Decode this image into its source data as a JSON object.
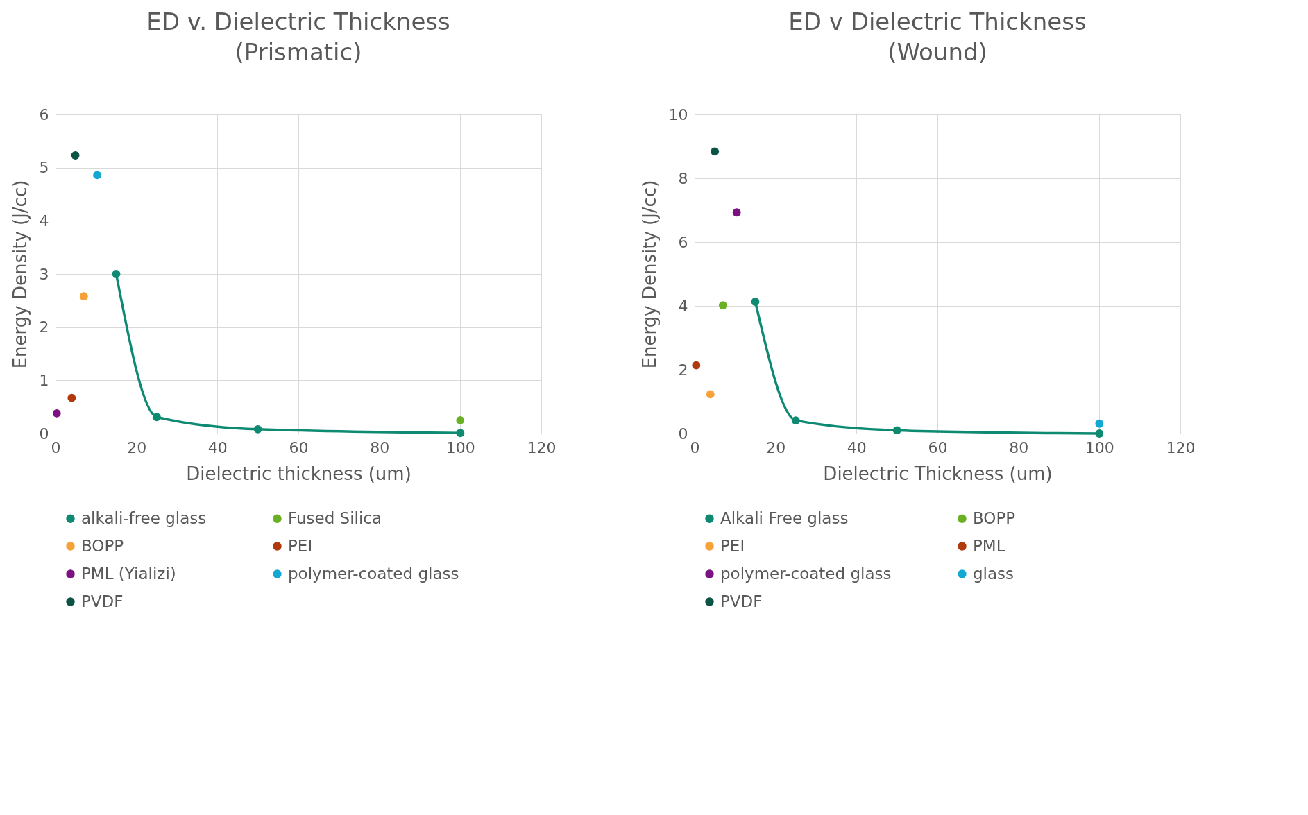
{
  "chart_data": [
    {
      "type": "scatter",
      "title": "ED v. Dielectric Thickness\n(Prismatic)",
      "xlabel": "Dielectric thickness (um)",
      "ylabel": "Energy Density (J/cc)",
      "xlim": [
        0,
        120
      ],
      "xticks": [
        0,
        20,
        40,
        60,
        80,
        100,
        120
      ],
      "ylim": [
        0,
        6
      ],
      "yticks": [
        0,
        1,
        2,
        3,
        4,
        5,
        6
      ],
      "grid": true,
      "legend": "bottom",
      "marker": "circle",
      "series": [
        {
          "name": "alkali-free glass",
          "type": "line",
          "color": "#0e8a72",
          "x": [
            15,
            25,
            50,
            100
          ],
          "values": [
            3.0,
            0.31,
            0.08,
            0.01
          ]
        },
        {
          "name": "Fused Silica",
          "color": "#6ab023",
          "x": [
            100
          ],
          "values": [
            0.25
          ]
        },
        {
          "name": "BOPP",
          "color": "#f7a139",
          "x": [
            7
          ],
          "values": [
            2.58
          ]
        },
        {
          "name": "PEI",
          "color": "#b03a0e",
          "x": [
            4
          ],
          "values": [
            0.67
          ]
        },
        {
          "name": "PML (Yializi)",
          "color": "#7b1183",
          "x": [
            0.3
          ],
          "values": [
            0.38
          ]
        },
        {
          "name": "polymer-coated glass",
          "color": "#12a8d2",
          "x": [
            10.3
          ],
          "values": [
            4.86
          ]
        },
        {
          "name": "PVDF",
          "color": "#0b5345",
          "x": [
            4.9
          ],
          "values": [
            5.23
          ]
        }
      ]
    },
    {
      "type": "scatter",
      "title": "ED v Dielectric Thickness\n(Wound)",
      "xlabel": "Dielectric Thickness (um)",
      "ylabel": "Energy Density (J/cc)",
      "xlim": [
        0,
        120
      ],
      "xticks": [
        0,
        20,
        40,
        60,
        80,
        100,
        120
      ],
      "ylim": [
        0,
        10
      ],
      "yticks": [
        0,
        2,
        4,
        6,
        8,
        10
      ],
      "grid": true,
      "legend": "bottom",
      "marker": "circle",
      "series": [
        {
          "name": "Alkali Free glass",
          "type": "line",
          "color": "#0e8a72",
          "x": [
            15,
            25,
            50,
            100
          ],
          "values": [
            4.13,
            0.41,
            0.1,
            0.0
          ]
        },
        {
          "name": "BOPP",
          "color": "#6ab023",
          "x": [
            7
          ],
          "values": [
            4.02
          ]
        },
        {
          "name": "PEI",
          "color": "#f7a139",
          "x": [
            3.9
          ],
          "values": [
            1.23
          ]
        },
        {
          "name": "PML",
          "color": "#b03a0e",
          "x": [
            0.4
          ],
          "values": [
            2.14
          ]
        },
        {
          "name": "polymer-coated glass",
          "color": "#7b1183",
          "x": [
            10.4
          ],
          "values": [
            6.93
          ]
        },
        {
          "name": "glass",
          "color": "#12a8d2",
          "x": [
            100
          ],
          "values": [
            0.31
          ]
        },
        {
          "name": "PVDF",
          "color": "#0b5345",
          "x": [
            5
          ],
          "values": [
            8.84
          ]
        }
      ]
    }
  ]
}
